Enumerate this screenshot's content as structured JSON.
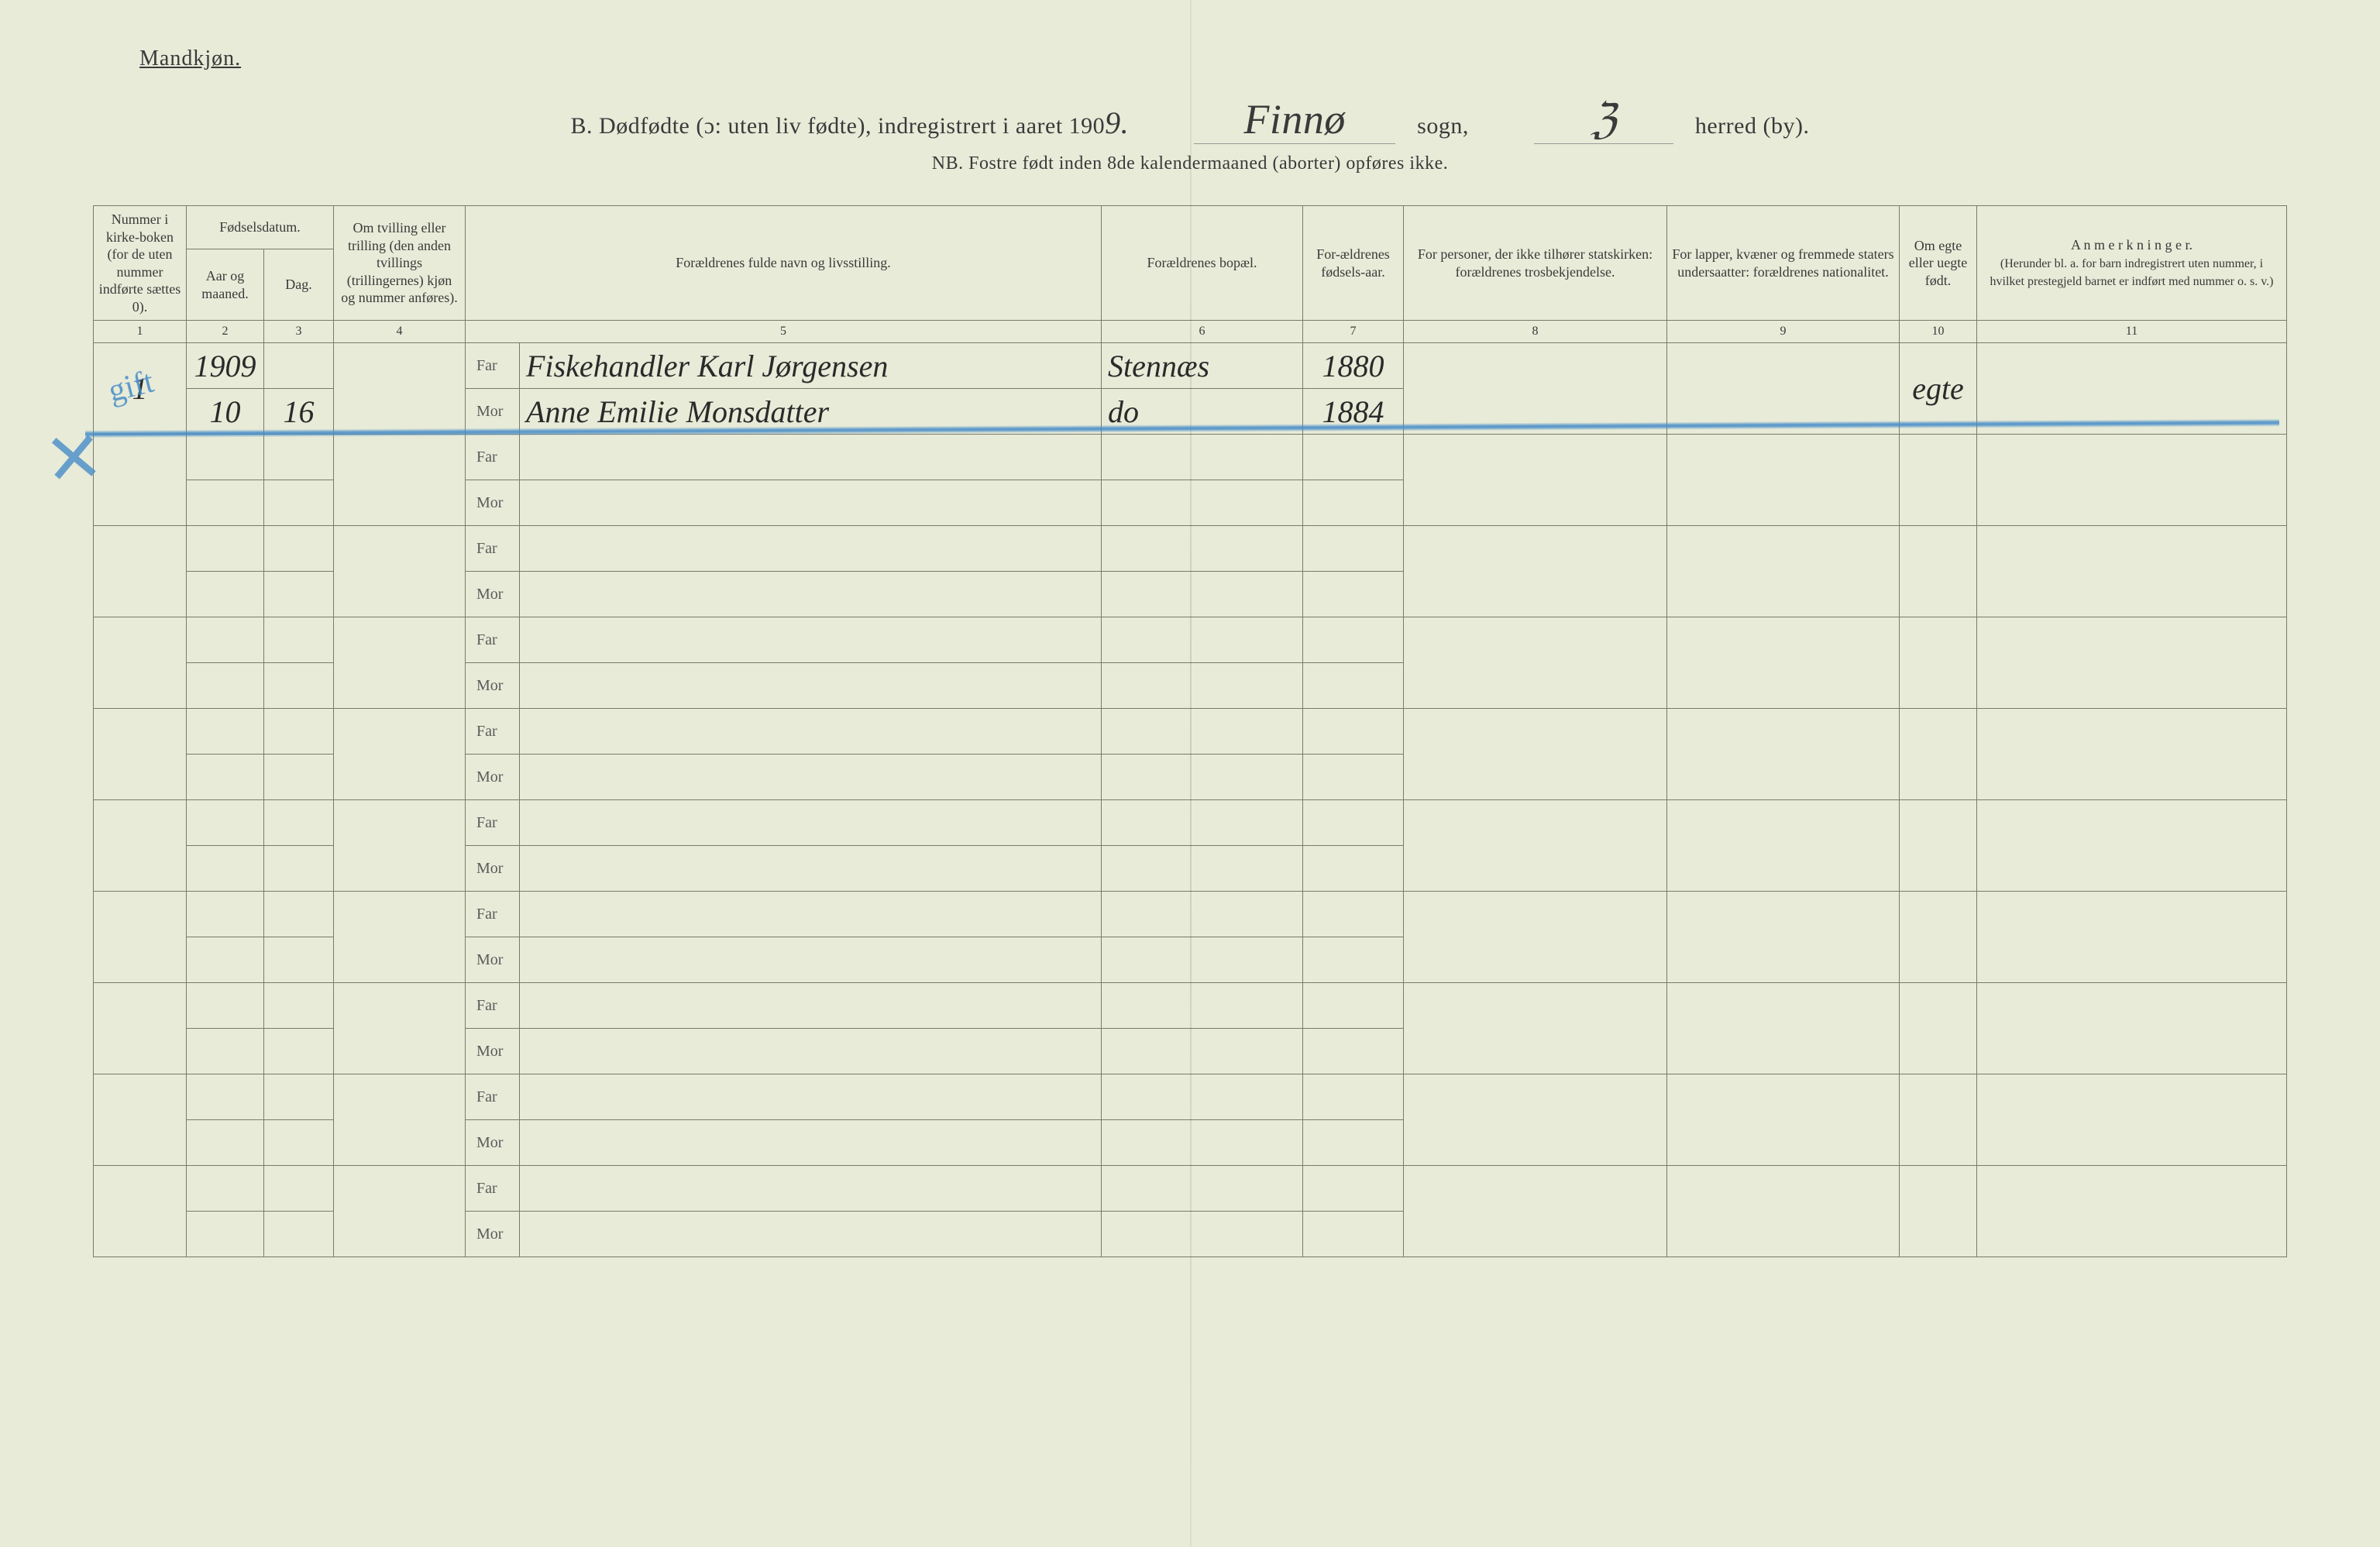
{
  "colors": {
    "page_bg": "#e8ebd8",
    "ink": "#3a3a3a",
    "rule": "#7a7a6a",
    "blue_pencil": "#468cc8"
  },
  "typography": {
    "body_fontsize_pt": 14,
    "header_fontsize_pt": 13,
    "handwritten_fontsize_pt": 28
  },
  "header": {
    "gender": "Mandkjøn.",
    "title_prefix": "B.  Dødfødte (ɔ: uten liv fødte), indregistrert i aaret 190",
    "year_suffix_handwritten": "9.",
    "sogn_handwritten": "Finnø",
    "sogn_label": "sogn,",
    "herred_handwritten": "ℨ",
    "herred_label": "herred (by).",
    "nb": "NB.  Fostre født inden 8de kalendermaaned (aborter) opføres ikke."
  },
  "columns": {
    "c1": "Nummer i kirke-boken (for de uten nummer indførte sættes 0).",
    "c_date": "Fødselsdatum.",
    "c2": "Aar og maaned.",
    "c3": "Dag.",
    "c4": "Om tvilling eller trilling (den anden tvillings (trillingernes) kjøn og nummer anføres).",
    "c5": "Forældrenes fulde navn og livsstilling.",
    "c6": "Forældrenes bopæl.",
    "c7": "For-ældrenes fødsels-aar.",
    "c8": "For personer, der ikke tilhører statskirken: forældrenes trosbekjendelse.",
    "c9": "For lapper, kvæner og fremmede staters undersaatter: forældrenes nationalitet.",
    "c10": "Om egte eller uegte født.",
    "c11_title": "A n m e r k n i n g e r.",
    "c11_sub": "(Herunder bl. a. for barn indregistrert uten nummer, i hvilket prestegjeld barnet er indført med nummer o. s. v.)"
  },
  "colnums": {
    "n1": "1",
    "n2": "2",
    "n3": "3",
    "n4": "4",
    "n5": "5",
    "n6": "6",
    "n7": "7",
    "n8": "8",
    "n9": "9",
    "n10": "10",
    "n11": "11"
  },
  "fm": {
    "far": "Far",
    "mor": "Mor"
  },
  "entries": [
    {
      "num": "1",
      "year_month": "1909",
      "day_line2": "16",
      "month_line2": "10",
      "far_name": "Fiskehandler Karl Jørgensen",
      "far_bopael": "Stennæs",
      "far_aar": "1880",
      "mor_name": "Anne Emilie Monsdatter",
      "mor_bopael": "do",
      "mor_aar": "1884",
      "egte": "egte",
      "blue_note": "gift"
    }
  ]
}
